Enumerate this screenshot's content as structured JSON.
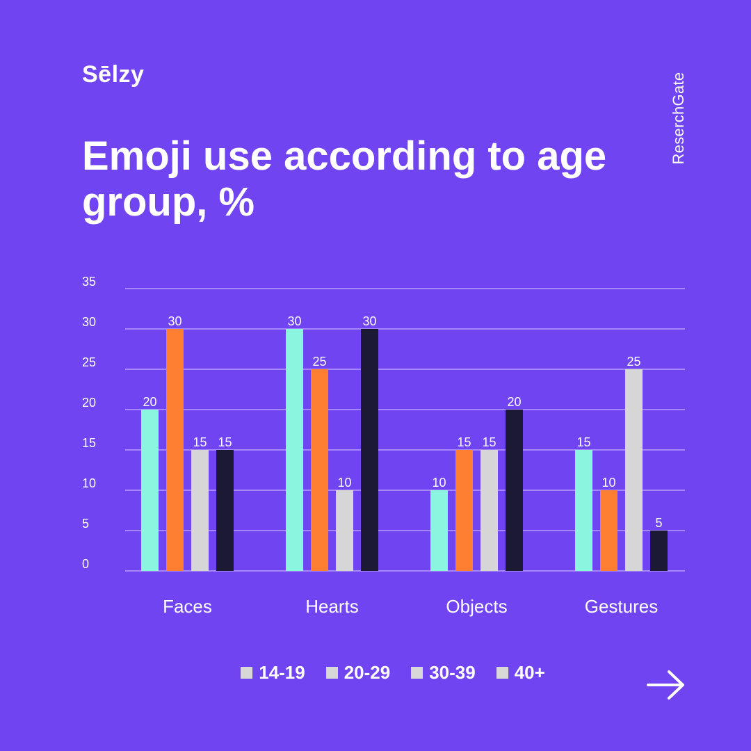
{
  "brand": {
    "logo_text": "Sēlzy"
  },
  "source_label": "ReserchGate",
  "navigation": {
    "next_icon": "arrow-right-icon"
  },
  "colors": {
    "background": "#7044f0",
    "gridline": "#b79bff",
    "series": [
      "#8cf5df",
      "#ff7f32",
      "#d6d6d6",
      "#1c1935"
    ],
    "legend_swatch": "#d8d8d8"
  },
  "chart_data": {
    "type": "bar",
    "title": "Emoji use according to age group, %",
    "xlabel": "",
    "ylabel": "",
    "categories": [
      "Faces",
      "Hearts",
      "Objects",
      "Gestures"
    ],
    "series": [
      {
        "name": "14-19",
        "values": [
          20,
          30,
          10,
          15
        ]
      },
      {
        "name": "20-29",
        "values": [
          30,
          25,
          15,
          10
        ]
      },
      {
        "name": "30-39",
        "values": [
          15,
          10,
          15,
          25
        ]
      },
      {
        "name": "40+",
        "values": [
          15,
          30,
          20,
          5
        ]
      }
    ],
    "ylim": [
      0,
      35
    ],
    "yticks": [
      0,
      5,
      10,
      15,
      20,
      25,
      30,
      35
    ],
    "grid": true,
    "legend_position": "bottom",
    "data_labels": true
  }
}
